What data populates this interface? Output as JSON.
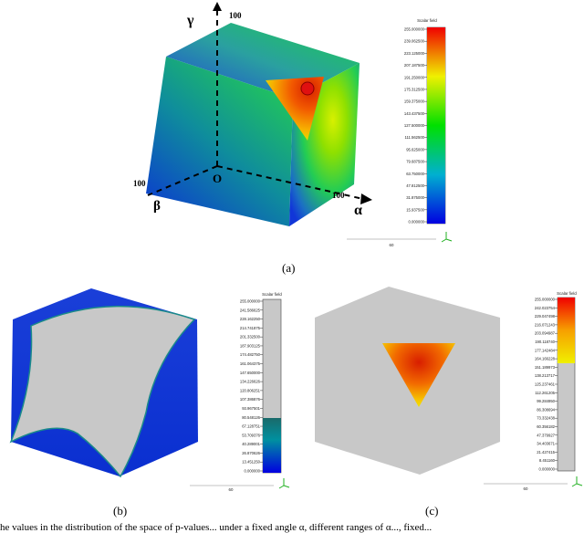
{
  "panels": {
    "a": {
      "caption": "(a)",
      "axes": {
        "alpha": "α",
        "beta": "β",
        "gamma": "γ",
        "origin": "O"
      },
      "axis_max": {
        "alpha": "100",
        "beta": "100",
        "gamma": "100"
      },
      "colorbar": {
        "title": "Scalar field",
        "ticks": [
          "255.000000",
          "239.062500",
          "223.125000",
          "207.187500",
          "191.250000",
          "175.312500",
          "159.375000",
          "143.437500",
          "127.500000",
          "111.562500",
          "95.625000",
          "79.687500",
          "63.750000",
          "47.812500",
          "31.875000",
          "15.937500",
          "0.000000"
        ],
        "bottom_value": "60"
      }
    },
    "b": {
      "caption": "(b)",
      "colorbar": {
        "title": "Scalar field",
        "ticks": [
          "255.000000",
          "241.586625",
          "228.162250",
          "214.741875",
          "201.332500",
          "187.903125",
          "174.482750",
          "161.064375",
          "147.650000",
          "134.226626",
          "120.806251",
          "107.386876",
          "93.967501",
          "80.548126",
          "67.128751",
          "53.709376",
          "40.289001",
          "26.870626",
          "13.451250",
          "0.000000"
        ],
        "bottom_value": "60"
      }
    },
    "c": {
      "caption": "(c)",
      "colorbar": {
        "title": "Scalar field",
        "ticks": [
          "255.000000",
          "242.023754",
          "229.047498",
          "216.071243",
          "203.094987",
          "190.118740",
          "177.142484",
          "164.166228",
          "151.189973",
          "138.213717",
          "125.237461",
          "112.261205",
          "99.284950",
          "86.308694",
          "73.332438",
          "60.356182",
          "47.379927",
          "34.403671",
          "21.427415",
          "8.451160",
          "0.000000"
        ],
        "bottom_value": "60"
      }
    }
  },
  "figure_caption": "he values in the distribution of the space of p-values... under a fixed angle α, different ranges of α..., fixed..."
}
